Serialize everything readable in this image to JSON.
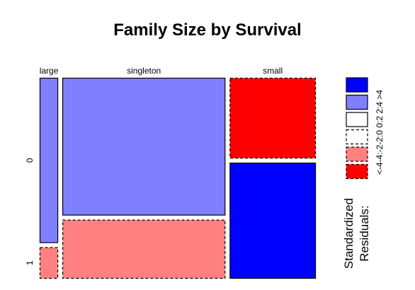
{
  "chart_data": {
    "type": "mosaic",
    "title": "Family Size by Survival",
    "x_variable_levels": [
      "large",
      "singleton",
      "small"
    ],
    "y_variable_levels": [
      "0",
      "1"
    ],
    "cells": [
      {
        "x": "large",
        "y": "0",
        "proportion_of_column": 0.84,
        "residual_class": "2:4",
        "border": "solid",
        "fill": "#8080ff"
      },
      {
        "x": "large",
        "y": "1",
        "proportion_of_column": 0.16,
        "residual_class": "-4:-2",
        "border": "dashed",
        "fill": "#ff8080"
      },
      {
        "x": "singleton",
        "y": "0",
        "proportion_of_column": 0.7,
        "residual_class": "2:4",
        "border": "solid",
        "fill": "#8080ff"
      },
      {
        "x": "singleton",
        "y": "1",
        "proportion_of_column": 0.3,
        "residual_class": "-4:-2",
        "border": "dashed",
        "fill": "#ff8080"
      },
      {
        "x": "small",
        "y": "0",
        "proportion_of_column": 0.41,
        "residual_class": "<-4",
        "border": "dashed",
        "fill": "#ff0000"
      },
      {
        "x": "small",
        "y": "1",
        "proportion_of_column": 0.59,
        "residual_class": ">4",
        "border": "solid",
        "fill": "#0000ff"
      }
    ],
    "column_widths": {
      "large": 0.069,
      "singleton": 0.609,
      "small": 0.322
    },
    "legend": {
      "title_line1": "Standardized",
      "title_line2": "Residuals:",
      "tick_text": "<-4-4:-2-2:0 0:2 2:4 >4",
      "items": [
        {
          "label": ">4",
          "fill": "#0000ff",
          "border": "solid"
        },
        {
          "label": "2:4",
          "fill": "#8080ff",
          "border": "solid"
        },
        {
          "label": "0:2",
          "fill": "#ffffff",
          "border": "solid"
        },
        {
          "label": "-2:0",
          "fill": "#ffffff",
          "border": "dashed"
        },
        {
          "label": "-4:-2",
          "fill": "#ff8080",
          "border": "dashed"
        },
        {
          "label": "<-4",
          "fill": "#ff0000",
          "border": "dashed"
        }
      ]
    }
  }
}
